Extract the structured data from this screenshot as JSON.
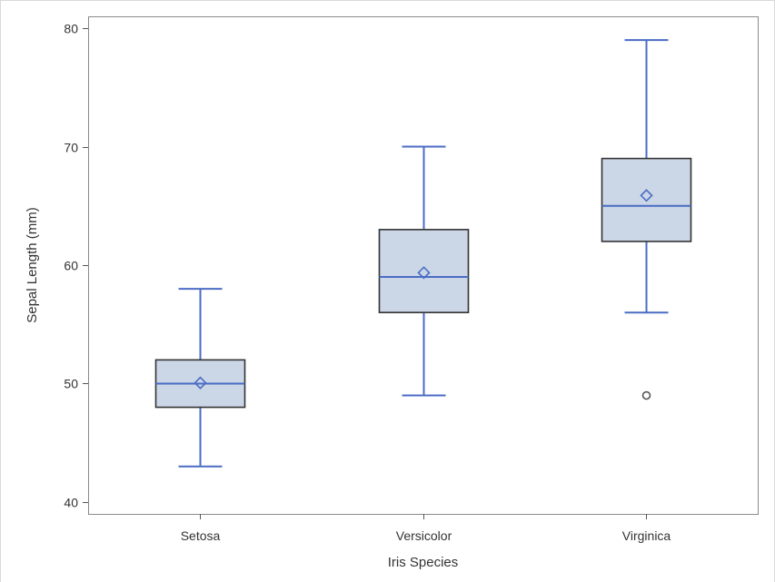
{
  "chart_data": {
    "type": "box",
    "title": "",
    "xlabel": "Iris Species",
    "ylabel": "Sepal Length (mm)",
    "ylim": [
      39,
      81
    ],
    "yticks": [
      40,
      50,
      60,
      70,
      80
    ],
    "ytick_labels": [
      "40",
      "50",
      "60",
      "70",
      "80"
    ],
    "grid": false,
    "categories": [
      "Setosa",
      "Versicolor",
      "Virginica"
    ],
    "boxes": [
      {
        "category": "Setosa",
        "min": 43,
        "q1": 48,
        "median": 50,
        "q3": 52,
        "max": 58,
        "mean": 50.06,
        "outliers": []
      },
      {
        "category": "Versicolor",
        "min": 49,
        "q1": 56,
        "median": 59,
        "q3": 63,
        "max": 70,
        "mean": 59.36,
        "outliers": []
      },
      {
        "category": "Virginica",
        "min": 56,
        "q1": 62,
        "median": 65,
        "q3": 69,
        "max": 79,
        "mean": 65.88,
        "outliers": [
          49
        ]
      }
    ],
    "colors": {
      "box_fill": "#cbd6e6",
      "box_edge": "#333333",
      "whisker": "#4a6cc4",
      "median": "#4a6cc4",
      "mean_marker": "#4a6cc4",
      "outlier": "#555555",
      "frame": "#8a8a8a"
    }
  }
}
